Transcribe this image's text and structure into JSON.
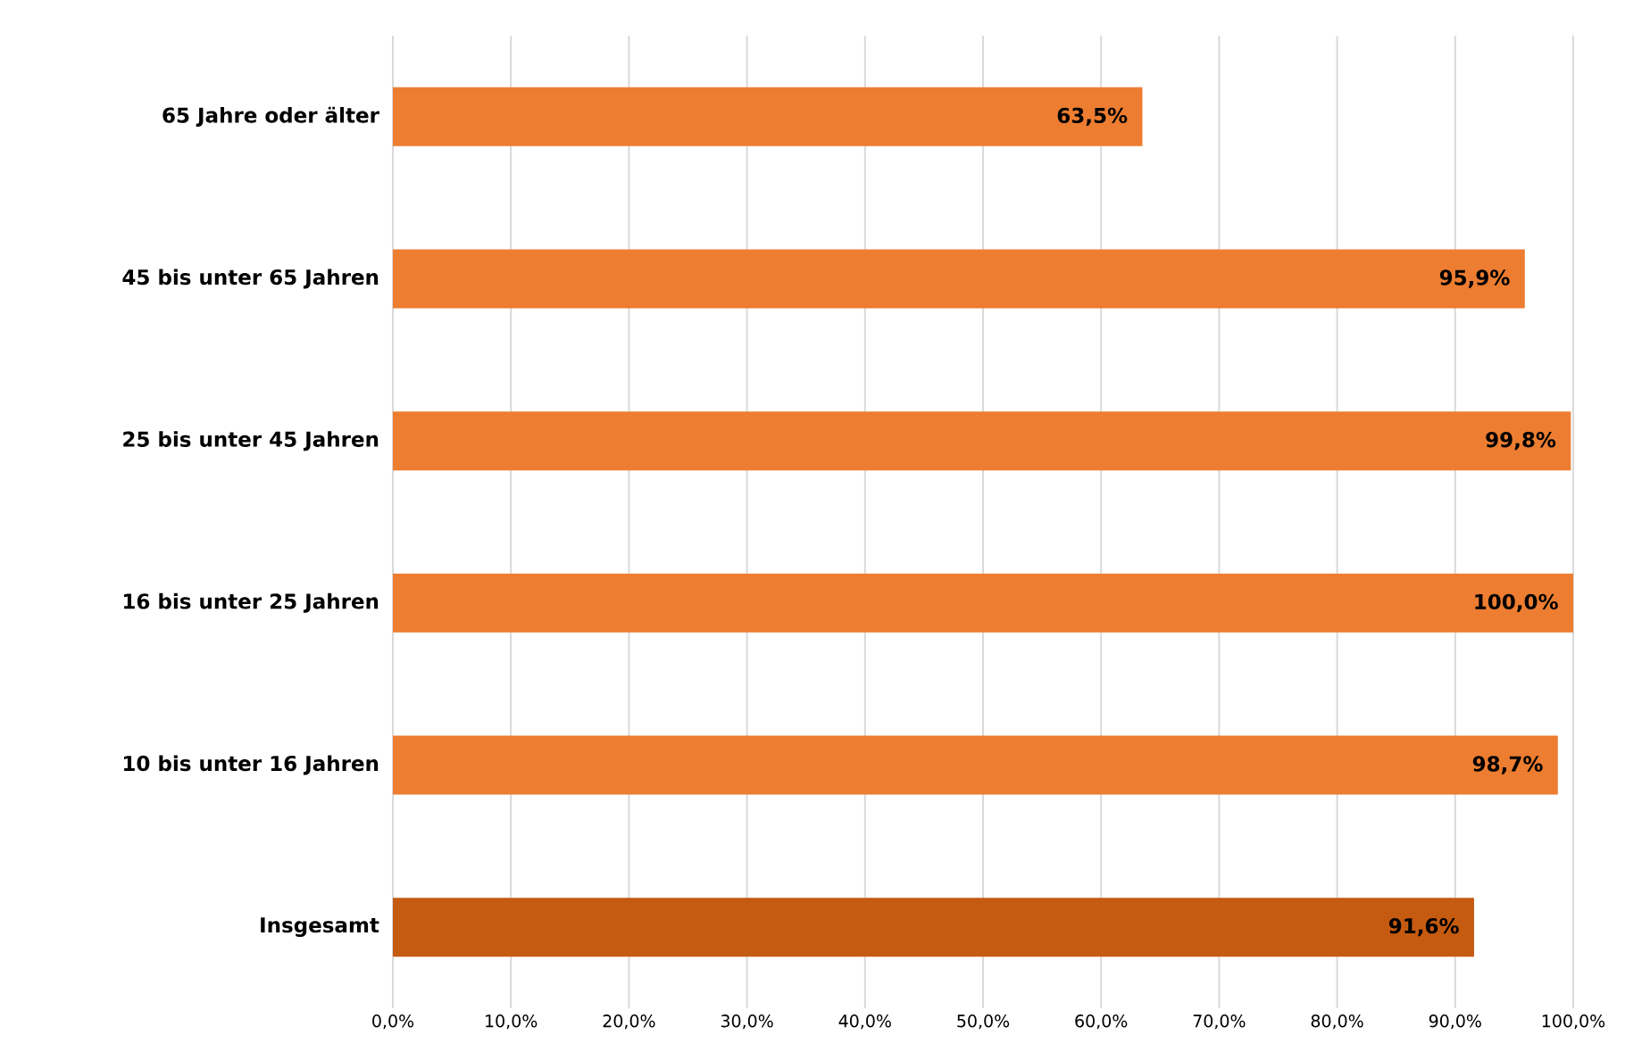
{
  "chart_data": {
    "type": "bar",
    "orientation": "horizontal",
    "categories": [
      "65 Jahre oder älter",
      "45 bis unter 65 Jahren",
      "25 bis unter 45 Jahren",
      "16 bis unter 25 Jahren",
      "10 bis unter 16 Jahren",
      "Insgesamt"
    ],
    "values": [
      63.5,
      95.9,
      99.8,
      100.0,
      98.7,
      91.6
    ],
    "value_labels": [
      "63,5%",
      "95,9%",
      "99,8%",
      "100,0%",
      "98,7%",
      "91,6%"
    ],
    "colors": [
      "#ed7d31",
      "#ed7d31",
      "#ed7d31",
      "#ed7d31",
      "#ed7d31",
      "#c55a11"
    ],
    "xlim": [
      0,
      100
    ],
    "xticks": [
      {
        "value": 0,
        "label": "0,0%"
      },
      {
        "value": 10,
        "label": "10,0%"
      },
      {
        "value": 20,
        "label": "20,0%"
      },
      {
        "value": 30,
        "label": "30,0%"
      },
      {
        "value": 40,
        "label": "40,0%"
      },
      {
        "value": 50,
        "label": "50,0%"
      },
      {
        "value": 60,
        "label": "60,0%"
      },
      {
        "value": 70,
        "label": "70,0%"
      },
      {
        "value": 80,
        "label": "80,0%"
      },
      {
        "value": 90,
        "label": "90,0%"
      },
      {
        "value": 100,
        "label": "100,0%"
      }
    ],
    "grid": "x"
  }
}
